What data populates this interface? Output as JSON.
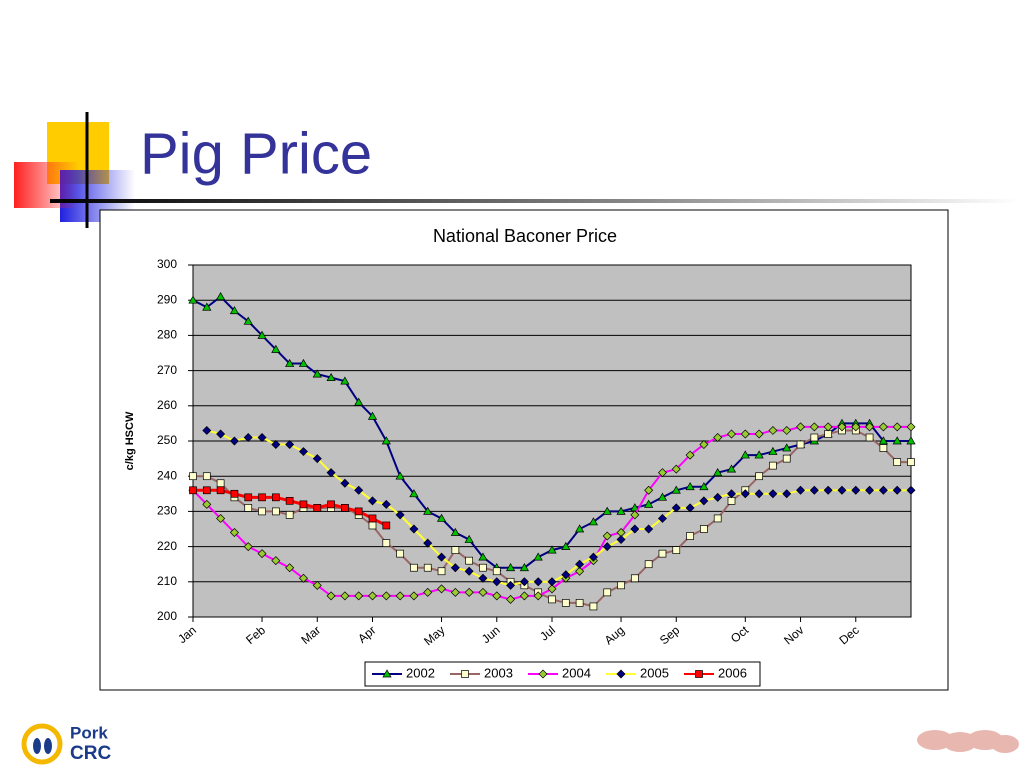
{
  "slide_title": "Pig Price",
  "logo": {
    "line1": "Pork",
    "line2": "CRC"
  },
  "chart_data": {
    "type": "line",
    "title": "National Baconer Price",
    "y_label": "c/kg HSCW",
    "categories": [
      "Jan",
      null,
      null,
      null,
      null,
      "Feb",
      null,
      null,
      null,
      "Mar",
      null,
      null,
      null,
      "Apr",
      null,
      null,
      null,
      null,
      "May",
      null,
      null,
      null,
      "Jun",
      null,
      null,
      null,
      "Jul",
      null,
      null,
      null,
      null,
      "Aug",
      null,
      null,
      null,
      "Sep",
      null,
      null,
      null,
      null,
      "Oct",
      null,
      null,
      null,
      "Nov",
      null,
      null,
      null,
      "Dec",
      null,
      null,
      null,
      null
    ],
    "ylim": [
      200,
      300
    ],
    "yticks": [
      200,
      210,
      220,
      230,
      240,
      250,
      260,
      270,
      280,
      290,
      300
    ],
    "grid": true,
    "legend": "bottom",
    "series": [
      {
        "name": "2002",
        "color": "#000080",
        "marker": "triangle",
        "marker_color": "#00c000",
        "values": [
          290,
          288,
          291,
          287,
          284,
          280,
          276,
          272,
          272,
          269,
          268,
          267,
          261,
          257,
          250,
          240,
          235,
          230,
          228,
          224,
          222,
          217,
          214,
          214,
          214,
          217,
          219,
          220,
          225,
          227,
          230,
          230,
          231,
          232,
          234,
          236,
          237,
          237,
          241,
          242,
          246,
          246,
          247,
          248,
          249,
          250,
          252,
          255,
          255,
          255,
          250,
          250,
          250
        ]
      },
      {
        "name": "2003",
        "color": "#996666",
        "marker": "square",
        "marker_color": "#ffffcc",
        "values": [
          240,
          240,
          238,
          234,
          231,
          230,
          230,
          229,
          231,
          231,
          231,
          231,
          229,
          226,
          221,
          218,
          214,
          214,
          213,
          219,
          216,
          214,
          213,
          210,
          209,
          207,
          205,
          204,
          204,
          203,
          207,
          209,
          211,
          215,
          218,
          219,
          223,
          225,
          228,
          233,
          236,
          240,
          243,
          245,
          249,
          251,
          252,
          253,
          253,
          251,
          248,
          244,
          244
        ]
      },
      {
        "name": "2004",
        "color": "#ff00ff",
        "marker": "diamond",
        "marker_color": "#99cc33",
        "values": [
          236,
          232,
          228,
          224,
          220,
          218,
          216,
          214,
          211,
          209,
          206,
          206,
          206,
          206,
          206,
          206,
          206,
          207,
          208,
          207,
          207,
          207,
          206,
          205,
          206,
          206,
          208,
          211,
          213,
          216,
          223,
          224,
          229,
          236,
          241,
          242,
          246,
          249,
          251,
          252,
          252,
          252,
          253,
          253,
          254,
          254,
          254,
          254,
          254,
          254,
          254,
          254,
          254
        ]
      },
      {
        "name": "2005",
        "color": "#ffff33",
        "marker": "diamond",
        "marker_color": "#000080",
        "values": [
          null,
          253,
          252,
          250,
          251,
          251,
          249,
          249,
          247,
          245,
          241,
          238,
          236,
          233,
          232,
          229,
          225,
          221,
          217,
          214,
          213,
          211,
          210,
          209,
          210,
          210,
          210,
          212,
          215,
          217,
          220,
          222,
          225,
          225,
          228,
          231,
          231,
          233,
          234,
          235,
          235,
          235,
          235,
          235,
          236,
          236,
          236,
          236,
          236,
          236,
          236,
          236,
          236
        ]
      },
      {
        "name": "2006",
        "color": "#ff0000",
        "marker": "square",
        "marker_color": "#ff0000",
        "values": [
          236,
          236,
          236,
          235,
          234,
          234,
          234,
          233,
          232,
          231,
          232,
          231,
          230,
          228,
          226,
          null,
          null,
          null,
          null,
          null,
          null,
          null,
          null,
          null,
          null,
          null,
          null,
          null,
          null,
          null,
          null,
          null,
          null,
          null,
          null,
          null,
          null,
          null,
          null,
          null,
          null,
          null,
          null,
          null,
          null,
          null,
          null,
          null,
          null,
          null,
          null,
          null,
          null
        ]
      }
    ]
  }
}
